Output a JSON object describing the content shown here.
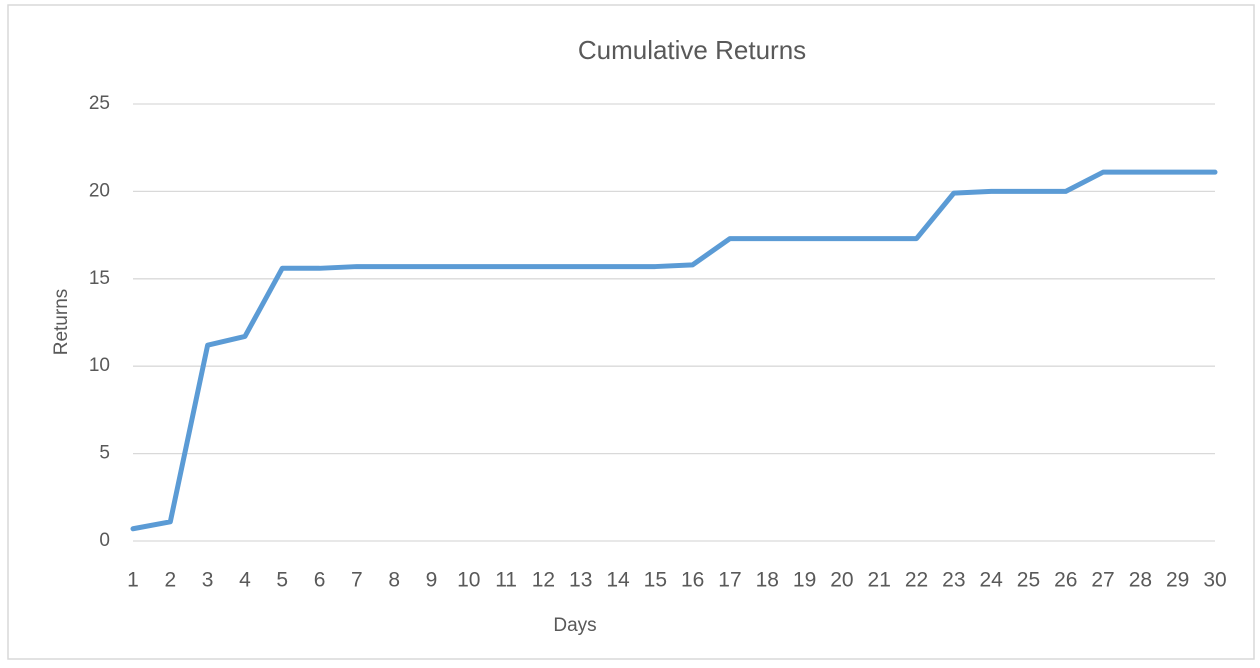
{
  "chart_data": {
    "type": "line",
    "title": "Cumulative Returns",
    "x_label": "Days",
    "y_label": "Returns",
    "categories": [
      "1",
      "2",
      "3",
      "4",
      "5",
      "6",
      "7",
      "8",
      "9",
      "10",
      "11",
      "12",
      "13",
      "14",
      "15",
      "16",
      "17",
      "18",
      "19",
      "20",
      "21",
      "22",
      "23",
      "24",
      "25",
      "26",
      "27",
      "28",
      "29",
      "30"
    ],
    "series": [
      {
        "name": "Returns",
        "color": "#5b9bd5",
        "values": [
          0.7,
          1.1,
          11.2,
          11.7,
          15.6,
          15.6,
          15.7,
          15.7,
          15.7,
          15.7,
          15.7,
          15.7,
          15.7,
          15.7,
          15.7,
          15.8,
          17.3,
          17.3,
          17.3,
          17.3,
          17.3,
          17.3,
          19.9,
          20.0,
          20.0,
          20.0,
          21.1,
          21.1,
          21.1,
          21.1
        ]
      }
    ],
    "ylim": [
      0,
      25
    ],
    "yticks": [
      0,
      5,
      10,
      15,
      20,
      25
    ],
    "grid": true
  }
}
